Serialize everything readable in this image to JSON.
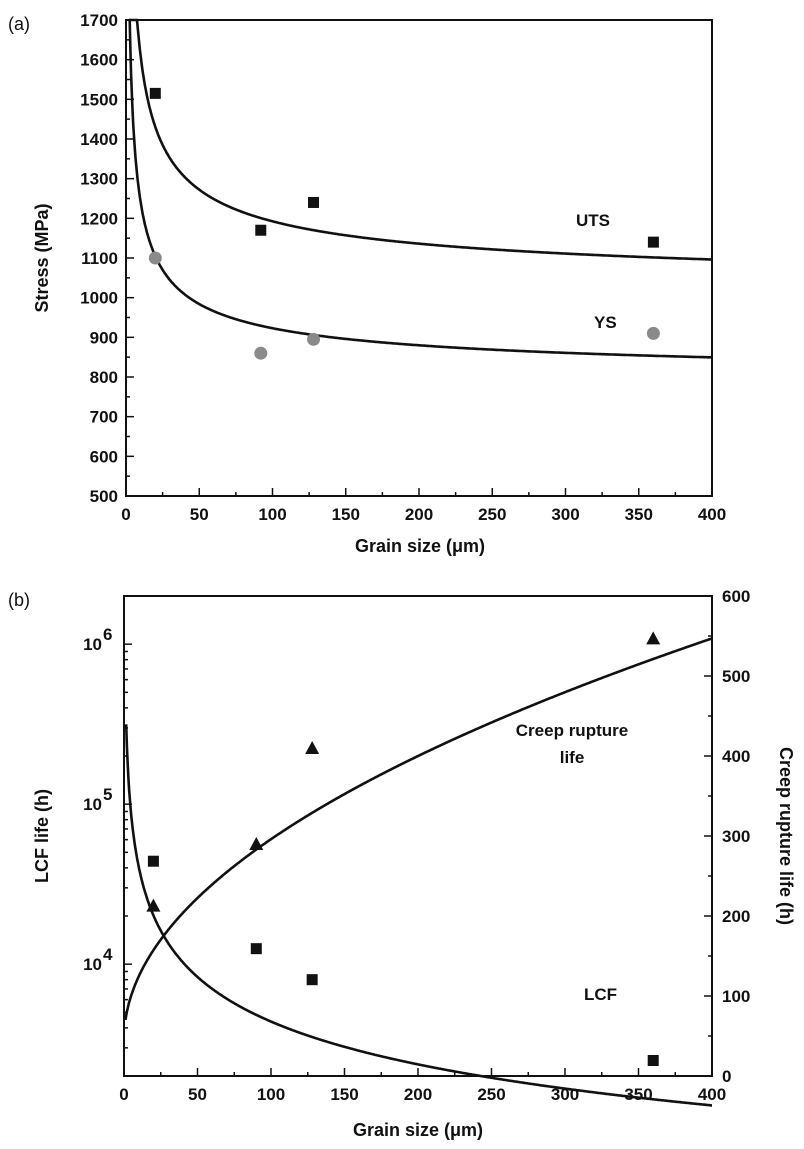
{
  "chart_data": [
    {
      "type": "scatter",
      "panel_label": "(a)",
      "xlabel": "Grain size (μm)",
      "ylabel": "Stress (MPa)",
      "xlim": [
        0,
        400
      ],
      "ylim": [
        500,
        1700
      ],
      "x_ticks": [
        0,
        50,
        100,
        150,
        200,
        250,
        300,
        350,
        400
      ],
      "y_ticks": [
        500,
        600,
        700,
        800,
        900,
        1000,
        1100,
        1200,
        1300,
        1400,
        1500,
        1600,
        1700
      ],
      "series": [
        {
          "name": "UTS",
          "marker": "square",
          "color": "#111111",
          "x": [
            20,
            92,
            128,
            360
          ],
          "y": [
            1515,
            1170,
            1240,
            1140
          ],
          "fit": {
            "form": "a + b/sqrt(d)",
            "a": 1000,
            "b": 1925,
            "x_start": 2
          }
        },
        {
          "name": "YS",
          "marker": "circle",
          "color": "#8a8a8a",
          "x": [
            20,
            92,
            128,
            360
          ],
          "y": [
            1100,
            860,
            895,
            910
          ],
          "fit": {
            "form": "a + b/sqrt(d)",
            "a": 776,
            "b": 1470,
            "x_start": 2
          }
        }
      ],
      "annotations": [
        "UTS",
        "YS"
      ]
    },
    {
      "type": "scatter",
      "panel_label": "(b)",
      "xlabel": "Grain size (μm)",
      "ylabel_left": "LCF life (h)",
      "ylabel_right": "Creep  rupture life (h)",
      "xlim": [
        0,
        400
      ],
      "ylim_left": [
        2000,
        2000000
      ],
      "y_scale_left": "log",
      "ylim_right": [
        0,
        600
      ],
      "x_ticks": [
        0,
        50,
        100,
        150,
        200,
        250,
        300,
        350,
        400
      ],
      "y_ticks_left": [
        {
          "value": 10000,
          "base": "10",
          "exp": "4"
        },
        {
          "value": 100000,
          "base": "10",
          "exp": "5"
        },
        {
          "value": 1000000,
          "base": "10",
          "exp": "6"
        }
      ],
      "y_ticks_right": [
        0,
        100,
        200,
        300,
        400,
        500,
        600
      ],
      "series": [
        {
          "name": "LCF",
          "marker": "square",
          "color": "#111111",
          "axis": "left",
          "x": [
            20,
            90,
            128,
            360
          ],
          "y": [
            44000,
            12500,
            8000,
            2500
          ],
          "fit": {
            "form": "a + b*ln(d) + c*ln(d)^2 (log10 life)",
            "a": 5.7,
            "b": -0.5,
            "c": 0.0115,
            "x_start": 1.5
          }
        },
        {
          "name": "Creep rupture life",
          "marker": "triangle",
          "color": "#111111",
          "axis": "right",
          "x": [
            20,
            90,
            128,
            360
          ],
          "y": [
            213,
            290,
            410,
            547
          ],
          "fit": {
            "form": "a + b*sqrt(d)",
            "a": 45,
            "b": 25.1,
            "x_start": 1
          }
        }
      ],
      "annotations": [
        "Creep rupture",
        "life",
        "LCF"
      ]
    }
  ]
}
